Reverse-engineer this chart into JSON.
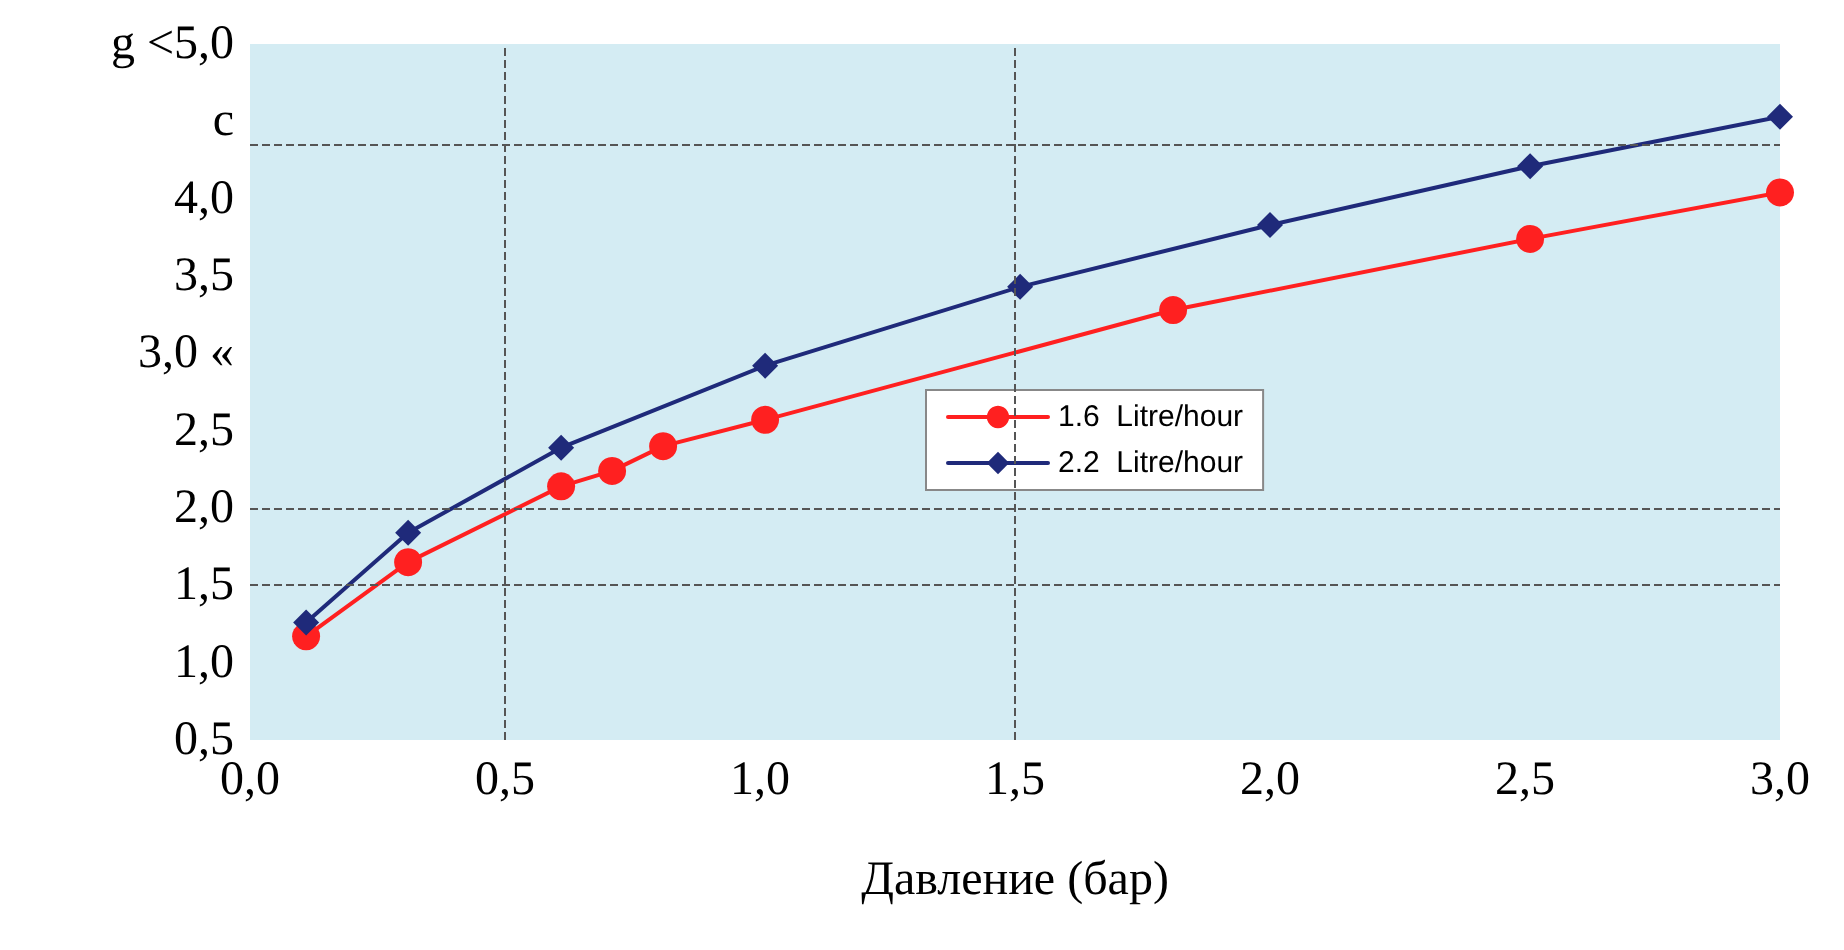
{
  "chart_data": {
    "type": "line",
    "xlabel": "Давление (бар)",
    "xlim": [
      0,
      3
    ],
    "xticks": [
      {
        "value": 0,
        "label": "0,0"
      },
      {
        "value": 0.5,
        "label": "0,5"
      },
      {
        "value": 1,
        "label": "1,0"
      },
      {
        "value": 1.5,
        "label": "1,5"
      },
      {
        "value": 2,
        "label": "2,0"
      },
      {
        "value": 2.5,
        "label": "2,5"
      },
      {
        "value": 3,
        "label": "3,0"
      }
    ],
    "ylim": [
      0.5,
      5
    ],
    "yticks": [
      {
        "value": 0.5,
        "label": "0,5"
      },
      {
        "value": 1,
        "label": "1,0"
      },
      {
        "value": 1.5,
        "label": "1,5"
      },
      {
        "value": 2,
        "label": "2,0"
      },
      {
        "value": 2.5,
        "label": "2,5"
      },
      {
        "value": 3,
        "label": "3,0 «"
      },
      {
        "value": 3.5,
        "label": "3,5"
      },
      {
        "value": 4,
        "label": "4,0"
      },
      {
        "value": 4.5,
        "label": "c"
      },
      {
        "value": 5,
        "label": "g <5,0"
      }
    ],
    "series": [
      {
        "name": "1.6  Litre/hour",
        "color": "#ff2020",
        "marker": "circle",
        "x": [
          0.11,
          0.31,
          0.61,
          0.71,
          0.81,
          1.01,
          1.81,
          2.51,
          3.0
        ],
        "values": [
          1.17,
          1.65,
          2.14,
          2.24,
          2.4,
          2.57,
          3.28,
          3.74,
          4.04
        ]
      },
      {
        "name": "2.2  Litre/hour",
        "color": "#1f2a7a",
        "marker": "diamond",
        "x": [
          0.11,
          0.31,
          0.61,
          1.01,
          1.51,
          2.0,
          2.51,
          3.0
        ],
        "values": [
          1.26,
          1.84,
          2.39,
          2.92,
          3.43,
          3.83,
          4.21,
          4.53
        ]
      }
    ],
    "ref_lines": [
      {
        "axis": "x",
        "value": 0.5,
        "color": "#555555",
        "line_style": "dashed"
      },
      {
        "axis": "x",
        "value": 1.5,
        "color": "#555555",
        "line_style": "dashed"
      },
      {
        "axis": "y",
        "value": 1.5,
        "color": "#555555",
        "line_style": "dashed"
      },
      {
        "axis": "y",
        "value": 2,
        "color": "#555555",
        "line_style": "dashed"
      },
      {
        "axis": "y",
        "value": 4.35,
        "color": "#555555",
        "line_style": "dashed"
      }
    ],
    "legend": "center",
    "line_style": "solid",
    "grid": false
  }
}
